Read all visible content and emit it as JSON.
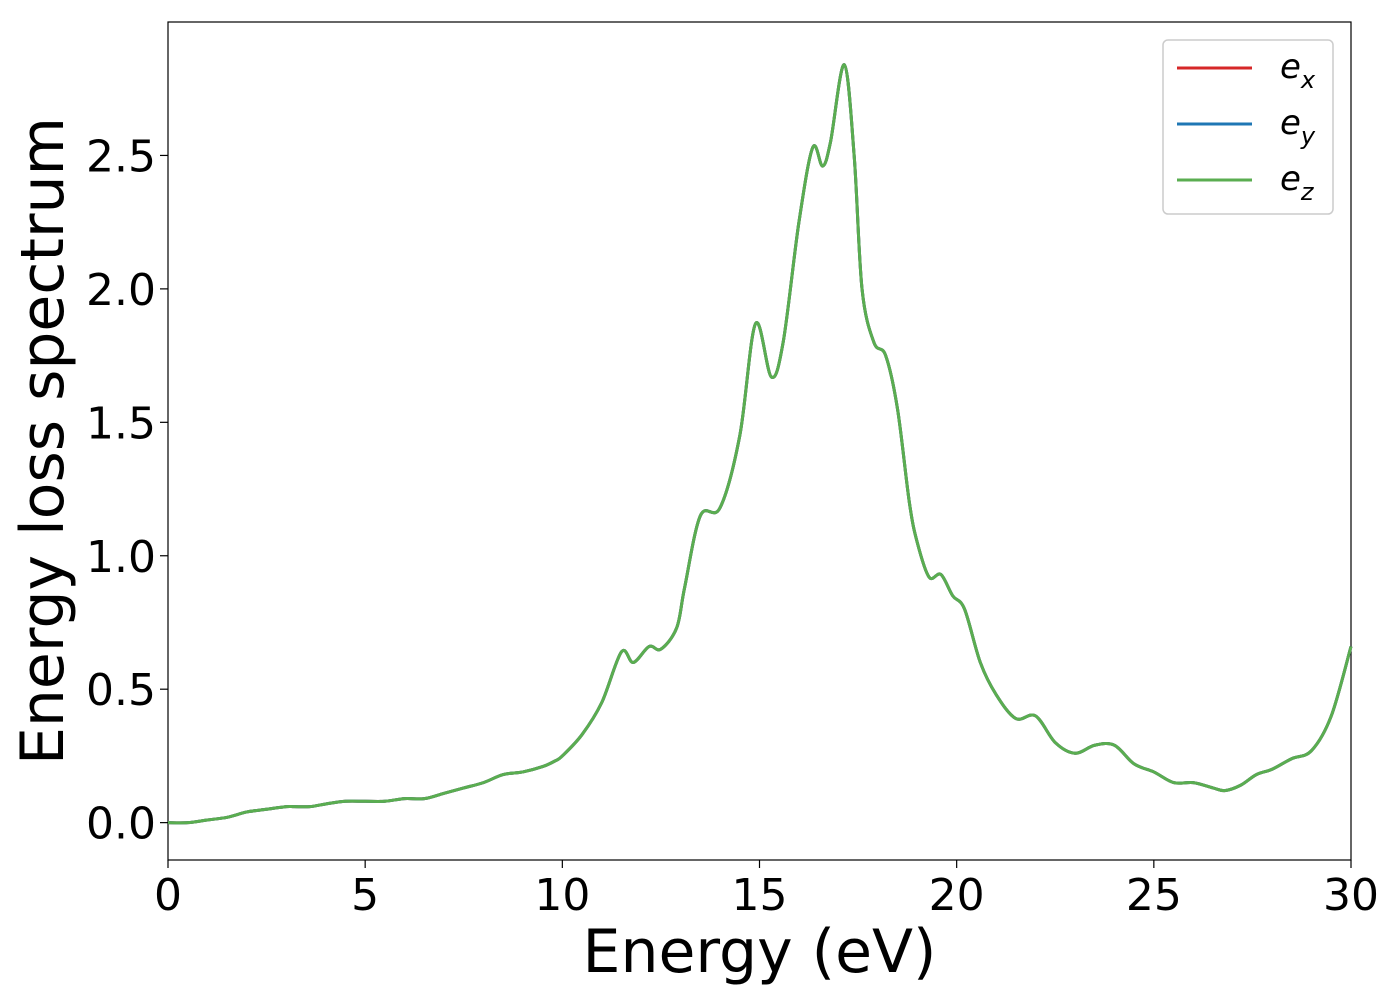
{
  "chart_data": {
    "type": "line",
    "xlabel": "Energy (eV)",
    "ylabel": "Energy loss spectrum",
    "xlim": [
      0,
      30
    ],
    "ylim": [
      -0.14,
      3.0
    ],
    "x_ticks": [
      "0",
      "5",
      "10",
      "15",
      "20",
      "25",
      "30"
    ],
    "y_ticks": [
      "0.0",
      "0.5",
      "1.0",
      "1.5",
      "2.0",
      "2.5"
    ],
    "grid": false,
    "legend_position": "top-right",
    "series": [
      {
        "name": "e_x",
        "label_base": "e",
        "label_sub": "x",
        "color": "#d62728"
      },
      {
        "name": "e_y",
        "label_base": "e",
        "label_sub": "y",
        "color": "#1f77b4"
      },
      {
        "name": "e_z",
        "label_base": "e",
        "label_sub": "z",
        "color": "#5aad50"
      }
    ],
    "x": [
      0,
      0.5,
      1.0,
      1.5,
      2.0,
      2.5,
      3.0,
      3.2,
      3.6,
      4.0,
      4.5,
      5.0,
      5.5,
      6.0,
      6.5,
      7.0,
      7.5,
      8.0,
      8.5,
      9.0,
      9.5,
      9.8,
      10.0,
      10.5,
      11.0,
      11.5,
      11.8,
      12.2,
      12.5,
      12.9,
      13.1,
      13.5,
      14.0,
      14.5,
      14.9,
      15.3,
      15.6,
      16.0,
      16.35,
      16.6,
      16.8,
      17.15,
      17.4,
      17.6,
      17.9,
      18.2,
      18.5,
      18.8,
      19.0,
      19.3,
      19.6,
      19.9,
      20.2,
      20.6,
      21.0,
      21.5,
      22.0,
      22.5,
      23.0,
      23.5,
      24.0,
      24.5,
      25.0,
      25.5,
      26.0,
      26.5,
      26.8,
      27.2,
      27.6,
      28.0,
      28.5,
      29.0,
      29.5,
      30.0
    ],
    "y": [
      0.0,
      0.0,
      0.01,
      0.02,
      0.04,
      0.05,
      0.06,
      0.06,
      0.06,
      0.07,
      0.08,
      0.08,
      0.08,
      0.09,
      0.09,
      0.11,
      0.13,
      0.15,
      0.18,
      0.19,
      0.21,
      0.23,
      0.25,
      0.33,
      0.45,
      0.64,
      0.6,
      0.66,
      0.65,
      0.73,
      0.88,
      1.15,
      1.18,
      1.45,
      1.87,
      1.67,
      1.8,
      2.25,
      2.53,
      2.46,
      2.55,
      2.84,
      2.5,
      2.0,
      1.8,
      1.75,
      1.55,
      1.2,
      1.05,
      0.92,
      0.93,
      0.85,
      0.8,
      0.6,
      0.48,
      0.39,
      0.4,
      0.3,
      0.26,
      0.29,
      0.29,
      0.22,
      0.19,
      0.15,
      0.15,
      0.13,
      0.12,
      0.14,
      0.18,
      0.2,
      0.24,
      0.27,
      0.4,
      0.66
    ]
  }
}
